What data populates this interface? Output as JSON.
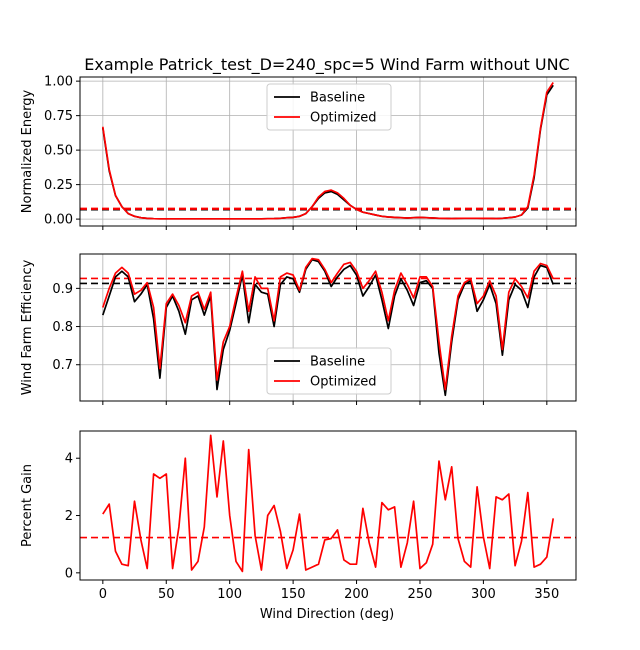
{
  "title": "Example Patrick_test_D=240_spc=5 Wind Farm without UNC",
  "x_label": "Wind Direction (deg)",
  "x_ticks": [
    0,
    50,
    100,
    150,
    200,
    250,
    300,
    350
  ],
  "colors": {
    "baseline": "#000000",
    "optimized": "#ff0000"
  },
  "chart_data": [
    {
      "type": "line",
      "ylabel": "Normalized Energy",
      "xlim": [
        -18,
        373
      ],
      "ylim": [
        -0.05,
        1.03
      ],
      "yticks": [
        0.0,
        0.25,
        0.5,
        0.75,
        1.0
      ],
      "ytick_labels": [
        "0.00",
        "0.25",
        "0.50",
        "0.75",
        "1.00"
      ],
      "grid": true,
      "legend": "top-center",
      "x": [
        0,
        5,
        10,
        15,
        20,
        25,
        30,
        35,
        40,
        45,
        50,
        55,
        60,
        65,
        70,
        75,
        80,
        85,
        90,
        95,
        100,
        105,
        110,
        115,
        120,
        125,
        130,
        135,
        140,
        145,
        150,
        155,
        160,
        165,
        170,
        175,
        180,
        185,
        190,
        195,
        200,
        205,
        210,
        215,
        220,
        225,
        230,
        235,
        240,
        245,
        250,
        255,
        260,
        265,
        270,
        275,
        280,
        285,
        290,
        295,
        300,
        305,
        310,
        315,
        320,
        325,
        330,
        335,
        340,
        345,
        350,
        355
      ],
      "series": [
        {
          "name": "Baseline",
          "values": [
            0.66,
            0.35,
            0.17,
            0.09,
            0.04,
            0.02,
            0.01,
            0.005,
            0.003,
            0.002,
            0.002,
            0.002,
            0.002,
            0.002,
            0.002,
            0.002,
            0.002,
            0.002,
            0.002,
            0.002,
            0.002,
            0.002,
            0.002,
            0.002,
            0.002,
            0.002,
            0.003,
            0.004,
            0.006,
            0.01,
            0.012,
            0.02,
            0.04,
            0.09,
            0.15,
            0.19,
            0.2,
            0.18,
            0.14,
            0.1,
            0.07,
            0.05,
            0.04,
            0.03,
            0.02,
            0.015,
            0.012,
            0.01,
            0.008,
            0.01,
            0.012,
            0.01,
            0.008,
            0.006,
            0.005,
            0.004,
            0.005,
            0.006,
            0.006,
            0.006,
            0.005,
            0.005,
            0.004,
            0.006,
            0.01,
            0.015,
            0.03,
            0.08,
            0.3,
            0.65,
            0.9,
            0.97
          ]
        },
        {
          "name": "Optimized",
          "values": [
            0.67,
            0.36,
            0.17,
            0.09,
            0.04,
            0.02,
            0.01,
            0.005,
            0.003,
            0.002,
            0.002,
            0.002,
            0.002,
            0.002,
            0.002,
            0.002,
            0.002,
            0.002,
            0.002,
            0.002,
            0.002,
            0.002,
            0.002,
            0.002,
            0.002,
            0.002,
            0.003,
            0.004,
            0.006,
            0.01,
            0.012,
            0.02,
            0.04,
            0.09,
            0.16,
            0.2,
            0.21,
            0.19,
            0.15,
            0.1,
            0.07,
            0.05,
            0.04,
            0.03,
            0.02,
            0.015,
            0.012,
            0.01,
            0.008,
            0.01,
            0.012,
            0.01,
            0.008,
            0.006,
            0.005,
            0.004,
            0.005,
            0.006,
            0.006,
            0.006,
            0.005,
            0.005,
            0.004,
            0.006,
            0.01,
            0.015,
            0.03,
            0.09,
            0.32,
            0.66,
            0.92,
            0.99
          ]
        }
      ],
      "hlines": [
        {
          "value": 0.07,
          "color": "#000000"
        },
        {
          "value": 0.075,
          "color": "#ff0000"
        }
      ]
    },
    {
      "type": "line",
      "ylabel": "Wind Farm Efficiency",
      "xlim": [
        -18,
        373
      ],
      "ylim": [
        0.605,
        0.99
      ],
      "yticks": [
        0.7,
        0.8,
        0.9
      ],
      "ytick_labels": [
        "0.7",
        "0.8",
        "0.9"
      ],
      "grid": true,
      "legend": "bottom-center",
      "x": [
        0,
        5,
        10,
        15,
        20,
        25,
        30,
        35,
        40,
        45,
        50,
        55,
        60,
        65,
        70,
        75,
        80,
        85,
        90,
        95,
        100,
        105,
        110,
        115,
        120,
        125,
        130,
        135,
        140,
        145,
        150,
        155,
        160,
        165,
        170,
        175,
        180,
        185,
        190,
        195,
        200,
        205,
        210,
        215,
        220,
        225,
        230,
        235,
        240,
        245,
        250,
        255,
        260,
        265,
        270,
        275,
        280,
        285,
        290,
        295,
        300,
        305,
        310,
        315,
        320,
        325,
        330,
        335,
        340,
        345,
        350,
        355
      ],
      "series": [
        {
          "name": "Baseline",
          "values": [
            0.83,
            0.88,
            0.93,
            0.945,
            0.93,
            0.865,
            0.885,
            0.91,
            0.82,
            0.665,
            0.85,
            0.88,
            0.84,
            0.78,
            0.87,
            0.88,
            0.83,
            0.88,
            0.635,
            0.74,
            0.79,
            0.86,
            0.935,
            0.81,
            0.91,
            0.89,
            0.885,
            0.8,
            0.91,
            0.93,
            0.925,
            0.89,
            0.95,
            0.975,
            0.97,
            0.945,
            0.905,
            0.93,
            0.95,
            0.96,
            0.935,
            0.88,
            0.905,
            0.935,
            0.87,
            0.795,
            0.88,
            0.925,
            0.895,
            0.855,
            0.915,
            0.92,
            0.9,
            0.73,
            0.62,
            0.76,
            0.87,
            0.91,
            0.92,
            0.84,
            0.87,
            0.91,
            0.86,
            0.725,
            0.87,
            0.91,
            0.895,
            0.85,
            0.93,
            0.96,
            0.955,
            0.91
          ]
        },
        {
          "name": "Optimized",
          "values": [
            0.85,
            0.9,
            0.94,
            0.955,
            0.94,
            0.885,
            0.895,
            0.915,
            0.85,
            0.69,
            0.86,
            0.885,
            0.855,
            0.81,
            0.88,
            0.89,
            0.845,
            0.89,
            0.66,
            0.76,
            0.8,
            0.875,
            0.945,
            0.84,
            0.93,
            0.9,
            0.9,
            0.815,
            0.93,
            0.94,
            0.935,
            0.895,
            0.955,
            0.978,
            0.975,
            0.95,
            0.915,
            0.94,
            0.963,
            0.968,
            0.945,
            0.9,
            0.92,
            0.945,
            0.89,
            0.815,
            0.895,
            0.94,
            0.91,
            0.875,
            0.93,
            0.93,
            0.905,
            0.76,
            0.635,
            0.775,
            0.88,
            0.915,
            0.925,
            0.86,
            0.88,
            0.92,
            0.88,
            0.74,
            0.89,
            0.925,
            0.905,
            0.875,
            0.945,
            0.965,
            0.96,
            0.925
          ]
        }
      ],
      "hlines": [
        {
          "value": 0.913,
          "color": "#000000"
        },
        {
          "value": 0.926,
          "color": "#ff0000"
        }
      ]
    },
    {
      "type": "line",
      "ylabel": "Percent Gain",
      "xlim": [
        -18,
        373
      ],
      "ylim": [
        -0.25,
        4.95
      ],
      "yticks": [
        0,
        2,
        4
      ],
      "ytick_labels": [
        "0",
        "2",
        "4"
      ],
      "grid": false,
      "x": [
        0,
        5,
        10,
        15,
        20,
        25,
        30,
        35,
        40,
        45,
        50,
        55,
        60,
        65,
        70,
        75,
        80,
        85,
        90,
        95,
        100,
        105,
        110,
        115,
        120,
        125,
        130,
        135,
        140,
        145,
        150,
        155,
        160,
        165,
        170,
        175,
        180,
        185,
        190,
        195,
        200,
        205,
        210,
        215,
        220,
        225,
        230,
        235,
        240,
        245,
        250,
        255,
        260,
        265,
        270,
        275,
        280,
        285,
        290,
        295,
        300,
        305,
        310,
        315,
        320,
        325,
        330,
        335,
        340,
        345,
        350,
        355
      ],
      "series": [
        {
          "name": "",
          "values": [
            2.05,
            2.4,
            0.75,
            0.3,
            0.25,
            2.5,
            1.15,
            0.15,
            3.45,
            3.3,
            3.45,
            0.15,
            1.6,
            4.0,
            0.1,
            0.4,
            1.6,
            4.8,
            2.65,
            4.6,
            2.0,
            0.4,
            0.05,
            4.3,
            1.3,
            0.1,
            2.0,
            2.35,
            1.45,
            0.15,
            0.8,
            2.05,
            0.1,
            0.2,
            0.3,
            1.15,
            1.2,
            1.5,
            0.45,
            0.3,
            0.3,
            2.25,
            1.05,
            0.2,
            2.45,
            2.2,
            2.3,
            0.2,
            1.05,
            2.5,
            0.15,
            0.35,
            1.0,
            3.9,
            2.55,
            3.7,
            1.2,
            0.4,
            0.2,
            3.0,
            1.25,
            0.15,
            2.65,
            2.55,
            2.75,
            0.25,
            1.1,
            2.8,
            0.2,
            0.3,
            0.55,
            1.9
          ]
        }
      ],
      "hlines": [
        {
          "value": 1.23,
          "color": "#ff0000"
        }
      ]
    }
  ]
}
